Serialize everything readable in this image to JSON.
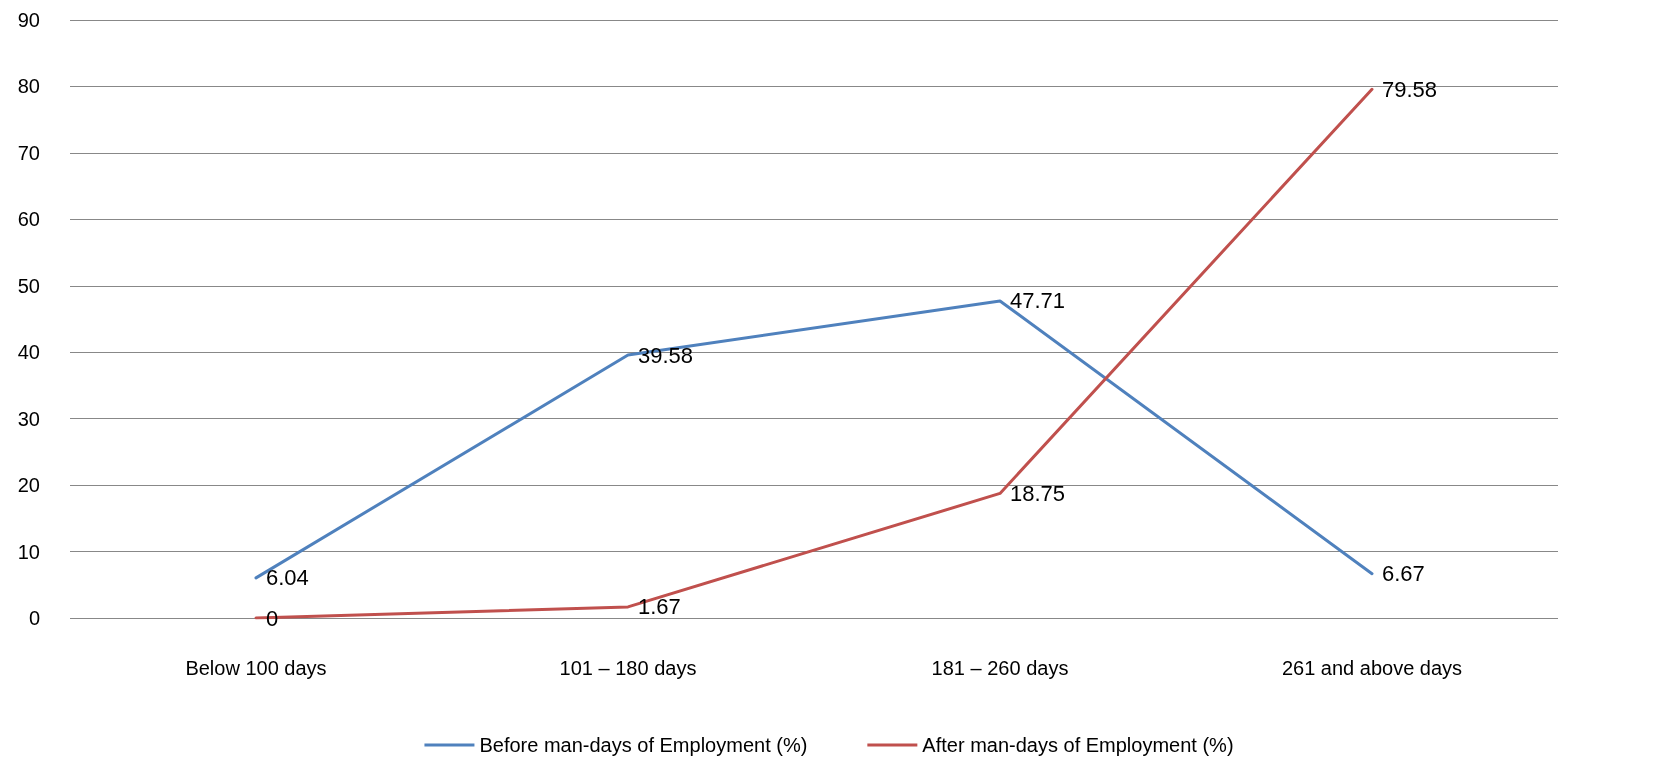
{
  "chart_data": {
    "type": "line",
    "categories": [
      "Below 100 days",
      "101 – 180 days",
      "181 – 260 days",
      "261 and above days"
    ],
    "series": [
      {
        "name": "Before man-days of Employment (%)",
        "color": "#4f81bd",
        "values": [
          6.04,
          39.58,
          47.71,
          6.67
        ]
      },
      {
        "name": "After man-days of Employment (%)",
        "color": "#c0504d",
        "values": [
          0,
          1.67,
          18.75,
          79.58
        ]
      }
    ],
    "ylim": [
      0,
      90
    ],
    "yticks": [
      0,
      10,
      20,
      30,
      40,
      50,
      60,
      70,
      80,
      90
    ],
    "grid": "y",
    "legend": "bottom",
    "data_labels": true,
    "marker": "none",
    "line_style": "solid"
  }
}
